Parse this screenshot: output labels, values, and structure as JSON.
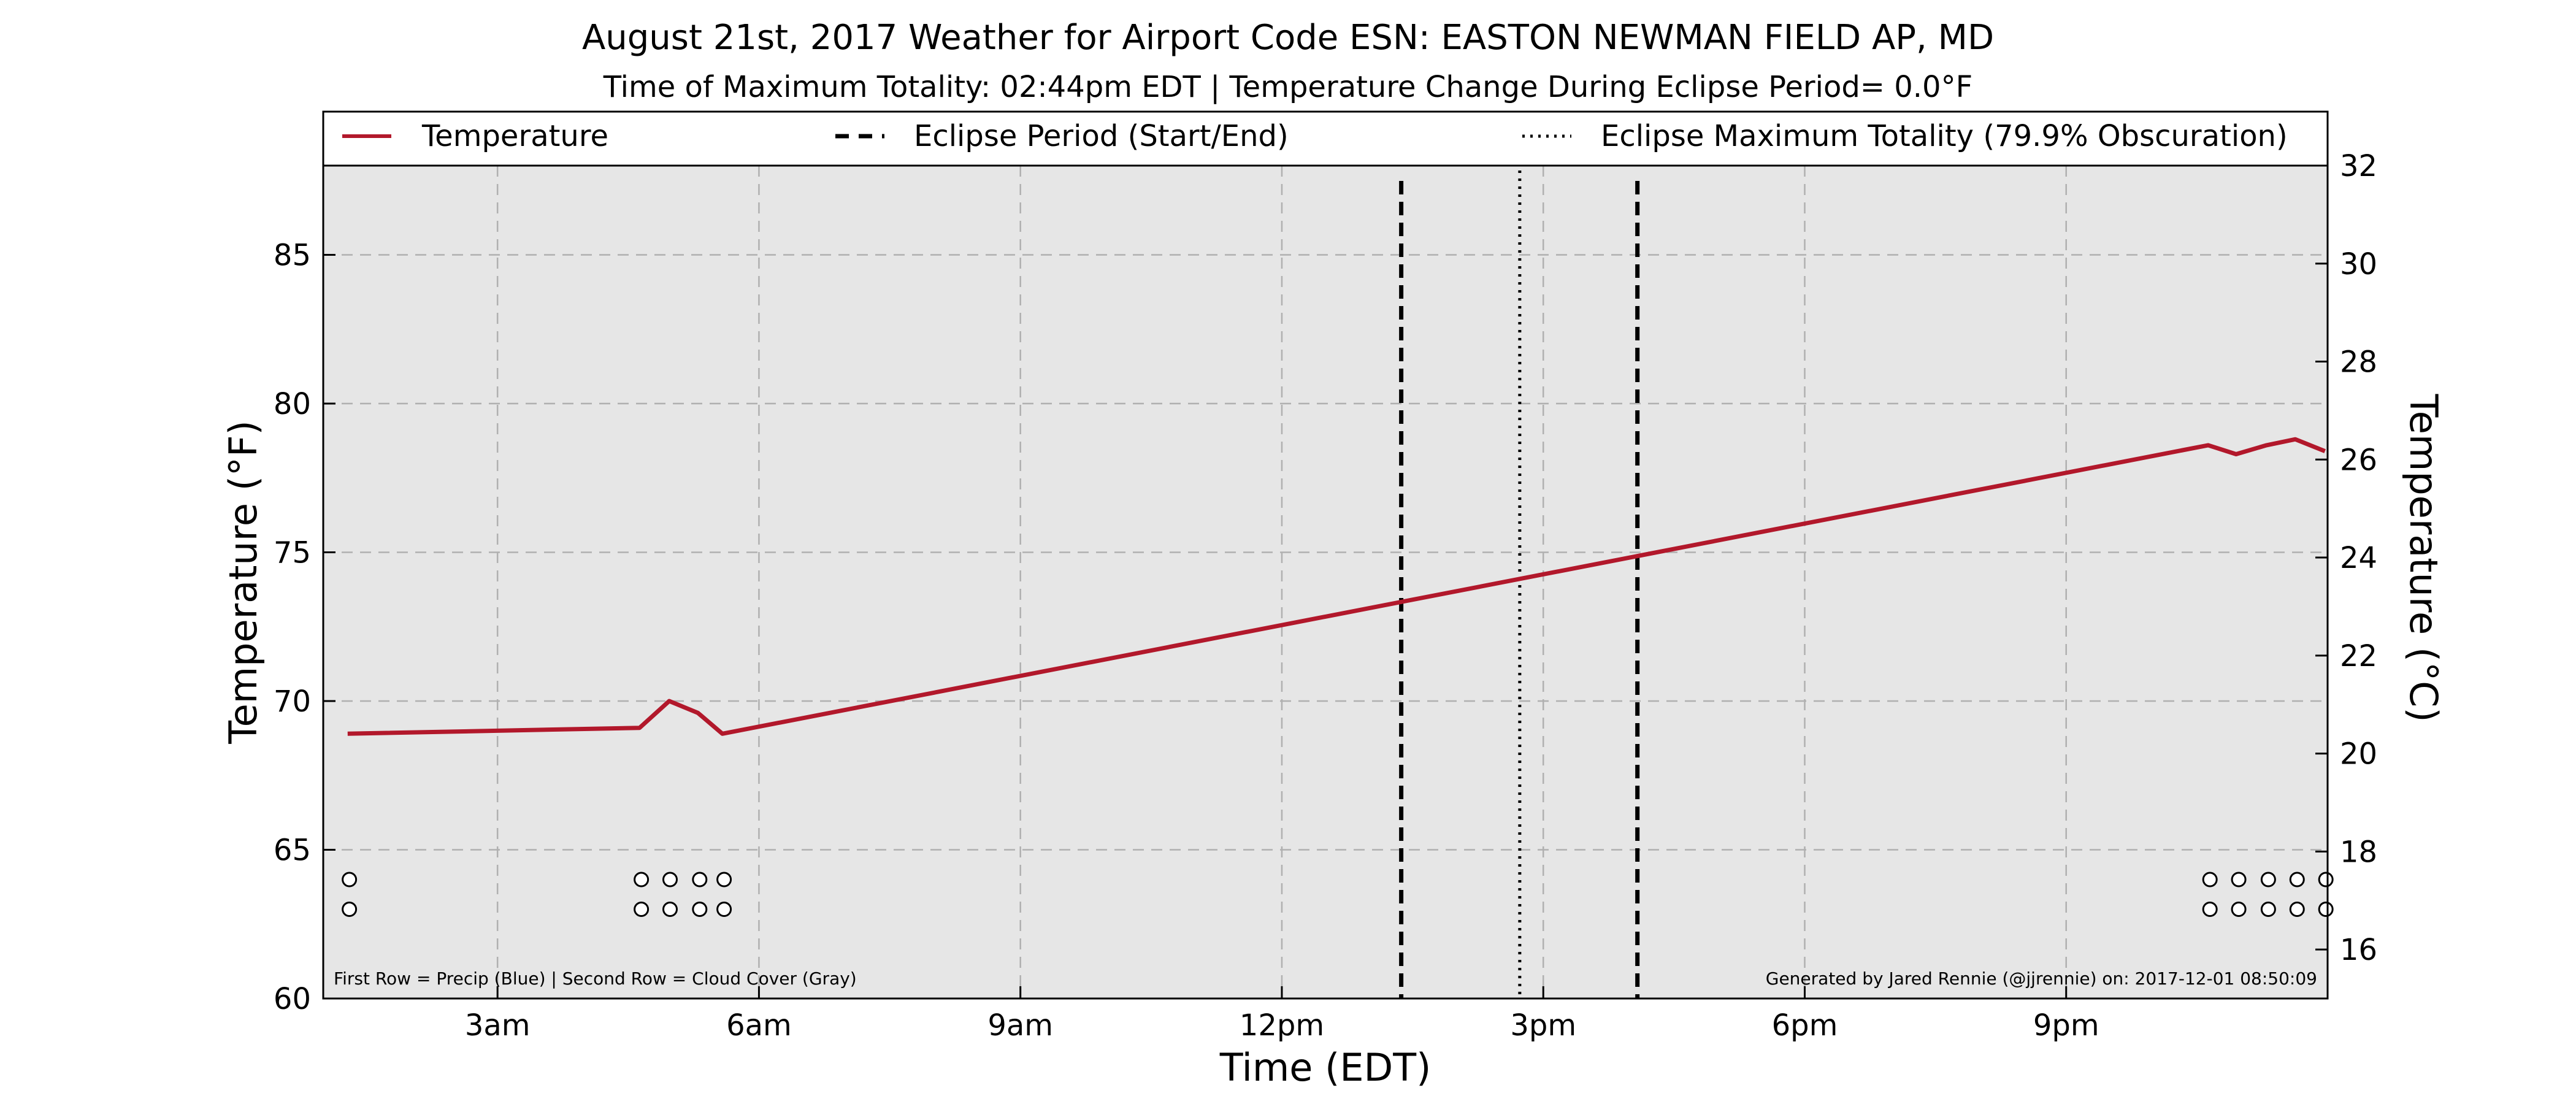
{
  "chart_data": {
    "type": "line",
    "title": "August 21st, 2017 Weather for Airport Code ESN: EASTON NEWMAN FIELD AP, MD",
    "subtitle": "Time of Maximum Totality: 02:44pm EDT | Temperature Change During Eclipse Period= 0.0°F",
    "xlabel": "Time (EDT)",
    "ylabel": "Temperature (°F)",
    "ylabel_right": "Temperature (°C)",
    "xlim_hours": [
      1.0,
      24.0
    ],
    "ylim": [
      60,
      88
    ],
    "ylim_right": [
      15.0,
      32.0
    ],
    "grid": true,
    "legend_position": "top",
    "x_ticks": [
      {
        "hour": 3,
        "label": "3am"
      },
      {
        "hour": 6,
        "label": "6am"
      },
      {
        "hour": 9,
        "label": "9am"
      },
      {
        "hour": 12,
        "label": "12pm"
      },
      {
        "hour": 15,
        "label": "3pm"
      },
      {
        "hour": 18,
        "label": "6pm"
      },
      {
        "hour": 21,
        "label": "9pm"
      }
    ],
    "y_ticks": [
      60,
      65,
      70,
      75,
      80,
      85
    ],
    "y_ticks_right": [
      16,
      18,
      20,
      22,
      24,
      26,
      28,
      30,
      32
    ],
    "series": [
      {
        "name": "Temperature",
        "color": "#b2182b",
        "hours": [
          1.28,
          4.63,
          4.97,
          5.3,
          5.58,
          22.63,
          22.95,
          23.3,
          23.63,
          23.97
        ],
        "values": [
          68.9,
          69.1,
          70.0,
          69.6,
          68.9,
          78.6,
          78.3,
          78.6,
          78.8,
          78.4
        ]
      }
    ],
    "eclipse": {
      "start_hour": 13.37,
      "end_hour": 16.08,
      "max_hour": 14.73,
      "line_color": "#000000"
    },
    "legend": {
      "temperature": "Temperature",
      "eclipse_period": "Eclipse Period (Start/End)",
      "max_totality": "Eclipse Maximum Totality (79.9% Obscuration)"
    },
    "markers": {
      "hours": [
        1.3,
        4.65,
        4.98,
        5.32,
        5.6,
        22.65,
        22.98,
        23.32,
        23.65,
        23.98
      ],
      "row1_value": 64.0,
      "row2_value": 63.0
    },
    "footnote_left": "First Row = Precip (Blue) | Second Row = Cloud Cover (Gray)",
    "footnote_right": "Generated by Jared Rennie (@jjrennie) on: 2017-12-01 08:50:09"
  }
}
